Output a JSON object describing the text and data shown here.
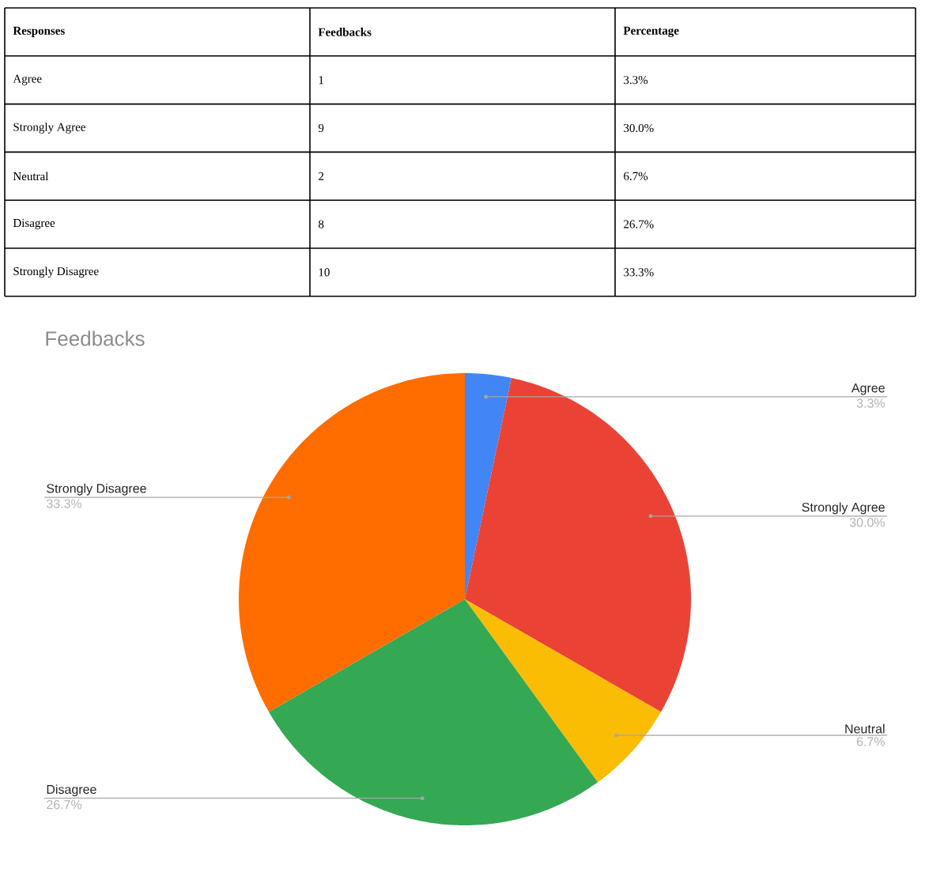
{
  "chart_data": [
    {
      "type": "other",
      "categories": [
        "Responses",
        "Feedbacks",
        "Percentage"
      ],
      "annotations": [
        "Agree",
        "1",
        "3.3%",
        "Strongly Agree",
        "9",
        "30.0%",
        "Neutral",
        "2",
        "6.7%",
        "Disagree",
        "8",
        "26.7%",
        "Strongly Disagree",
        "10",
        "33.3%"
      ]
    },
    {
      "type": "pie",
      "title": "Feedbacks",
      "categories": [
        "Agree",
        "Strongly Agree",
        "Neutral",
        "Disagree",
        "Strongly Disagree"
      ],
      "values": [
        3.3,
        30.0,
        6.7,
        26.7,
        33.3
      ],
      "value_labels": [
        "3.3%",
        "30.0%",
        "6.7%",
        "26.7%",
        "33.3%"
      ],
      "colors": [
        "#4285f4",
        "#ea4335",
        "#fbbc04",
        "#34a853",
        "#ff6d01"
      ],
      "legend": false
    }
  ]
}
